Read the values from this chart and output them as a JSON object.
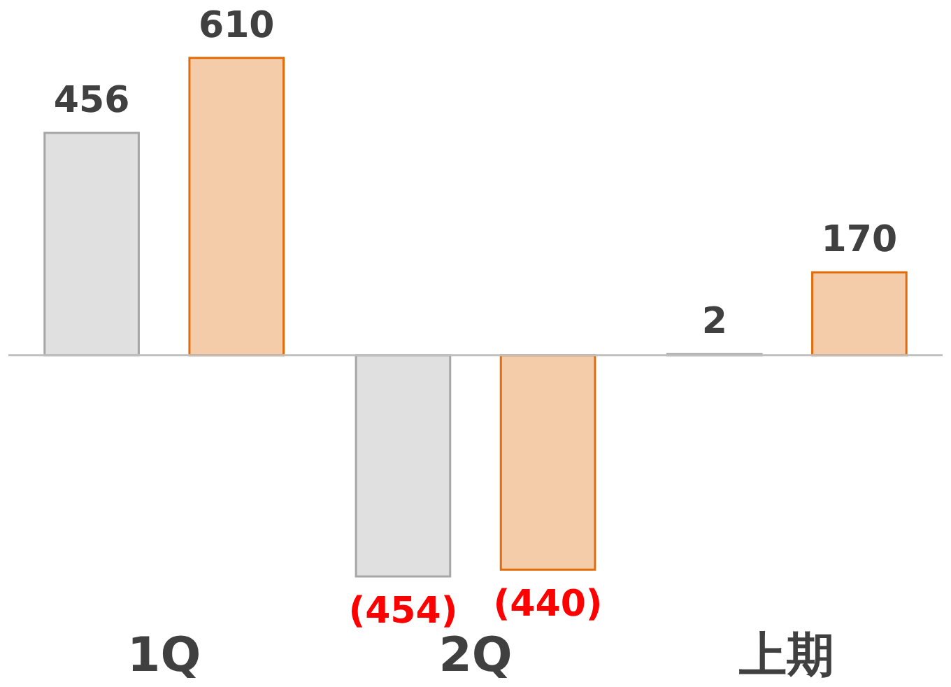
{
  "chart_data": {
    "type": "bar",
    "categories": [
      "1Q",
      "2Q",
      "上期"
    ],
    "series": [
      {
        "color": "#a6a6a6",
        "values": [
          456,
          -454,
          2
        ],
        "value_labels": [
          "456",
          "(454)",
          "2"
        ]
      },
      {
        "color": "#e36c0a",
        "values": [
          610,
          -440,
          170
        ],
        "value_labels": [
          "610",
          "(440)",
          "170"
        ]
      }
    ],
    "legend": false,
    "grid": false
  }
}
